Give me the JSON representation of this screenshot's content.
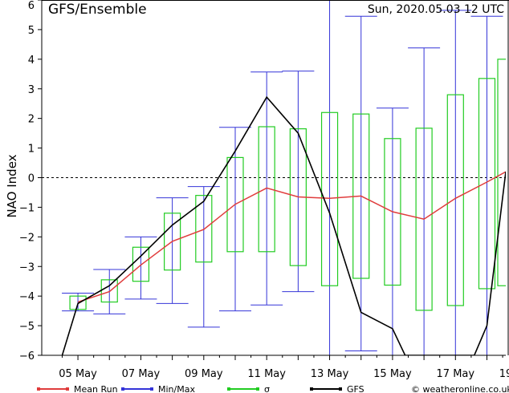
{
  "chart_data": {
    "type": "box",
    "title": "GFS/Ensemble",
    "run_label": "Sun, 2020.05.03   12 UTC",
    "ylabel": "NAO Index",
    "ylim": [
      -6,
      6
    ],
    "yticks": [
      -6,
      -5,
      -4,
      -3,
      -2,
      -1,
      0,
      1,
      2,
      3,
      4,
      5,
      6
    ],
    "xlabels": [
      {
        "label": "05 May",
        "x": 1.0
      },
      {
        "label": "07 May",
        "x": 3.0
      },
      {
        "label": "09 May",
        "x": 5.0
      },
      {
        "label": "11 May",
        "x": 7.0
      },
      {
        "label": "13 May",
        "x": 9.0
      },
      {
        "label": "15 May",
        "x": 11.0
      },
      {
        "label": "17 May",
        "x": 13.0
      },
      {
        "label": "19",
        "x": 14.6
      }
    ],
    "xlim": [
      -0.15,
      14.6
    ],
    "steps": [
      0.5,
      1,
      1.5,
      2,
      2.5,
      3,
      3.5,
      4,
      4.5,
      5,
      5.5,
      6,
      6.5,
      7,
      7.5,
      8,
      8.5,
      9,
      9.5,
      10,
      10.5,
      11,
      11.5,
      12,
      12.5,
      13,
      13.5,
      14,
      14.5,
      15
    ],
    "series": [
      {
        "name": "Mean Run",
        "color": "#e03c3c",
        "x": [
          1,
          2,
          3,
          4,
          5,
          6,
          7,
          8,
          9,
          10,
          11,
          12,
          13,
          14,
          14.6
        ],
        "values": [
          -4.2,
          -3.85,
          -2.95,
          -2.15,
          -1.75,
          -0.9,
          -0.35,
          -0.65,
          -0.7,
          -0.62,
          -1.15,
          -1.4,
          -0.7,
          -0.15,
          0.2
        ]
      },
      {
        "name": "GFS",
        "color": "#000000",
        "x": [
          0.5,
          1.0,
          2.0,
          3.0,
          4.0,
          5.0,
          6.0,
          7.0,
          8.0,
          9.0,
          10.0,
          11.0,
          11.4,
          13.6,
          14.0,
          14.6
        ],
        "values": [
          -6.0,
          -4.25,
          -3.65,
          -2.65,
          -1.6,
          -0.8,
          0.9,
          2.72,
          1.5,
          -1.2,
          -4.55,
          -5.1,
          -6.0,
          -6.0,
          -5.0,
          0.2
        ]
      }
    ],
    "minmax": {
      "name": "Min/Max",
      "color": "#3434d8",
      "x": [
        1,
        2,
        3,
        4,
        5,
        6,
        7,
        8,
        9,
        10,
        11,
        12,
        13,
        14
      ],
      "min": [
        -4.5,
        -4.6,
        -4.1,
        -4.25,
        -5.05,
        -4.5,
        -4.3,
        -3.85,
        -6.0,
        -5.85,
        -6.0,
        -6.0,
        -6.0,
        -6.0
      ],
      "max": [
        -3.9,
        -3.1,
        -2.0,
        -0.68,
        -0.3,
        1.7,
        3.57,
        3.6,
        6.0,
        5.45,
        2.35,
        4.38,
        5.65,
        5.45
      ]
    },
    "sigma": {
      "name": "σ",
      "color": "#22cc22",
      "x": [
        1,
        2,
        3,
        4,
        5,
        6,
        7,
        8,
        9,
        10,
        11,
        12,
        13,
        14,
        14.6
      ],
      "low": [
        -4.45,
        -4.2,
        -3.5,
        -3.12,
        -2.85,
        -2.5,
        -2.5,
        -2.97,
        -3.65,
        -3.4,
        -3.63,
        -4.48,
        -4.32,
        -3.75,
        -3.65
      ],
      "high": [
        -4.0,
        -3.45,
        -2.35,
        -1.2,
        -0.6,
        0.68,
        1.72,
        1.65,
        2.2,
        2.15,
        1.32,
        1.67,
        2.8,
        3.35,
        4.0
      ]
    },
    "legend": {
      "placement": "bottom",
      "items": [
        {
          "label": "Mean Run",
          "color": "#e03c3c"
        },
        {
          "label": "Min/Max",
          "color": "#3434d8"
        },
        {
          "label": "σ",
          "color": "#22cc22"
        },
        {
          "label": "GFS",
          "color": "#000000"
        }
      ]
    },
    "credit": "© weatheronline.co.uk",
    "zero_line": "dashed",
    "grid": false
  }
}
